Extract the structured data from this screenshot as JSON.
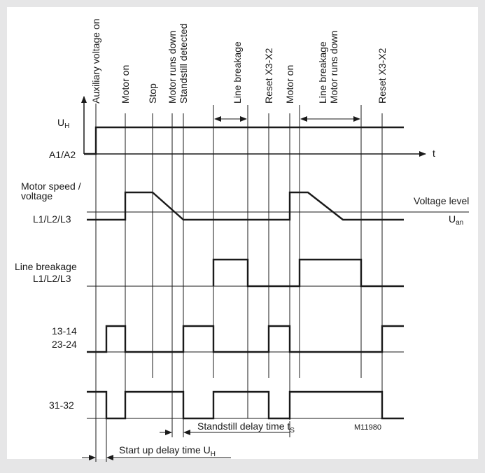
{
  "events": [
    "Auxiliary voltage on",
    "Motor on",
    "Stop",
    "Motor runs down",
    "Standstill detected",
    "Line breakage",
    "Reset X3-X2",
    "Motor on",
    "Line breakage",
    "Motor runs down",
    "Reset X3-X2"
  ],
  "rows": {
    "uh_main": "U",
    "uh_sub": "H",
    "a1a2": "A1/A2",
    "motor_speed_1": "Motor speed /",
    "motor_speed_2": "voltage",
    "l1l2l3_a": "L1/L2/L3",
    "line_breakage": "Line breakage",
    "l1l2l3_b": "L1/L2/L3",
    "c1314": "13-14",
    "c2324": "23-24",
    "c3132": "31-32"
  },
  "axis_label": "t",
  "voltage_level_1": "Voltage level",
  "voltage_level_2_main": "U",
  "voltage_level_2_sub": "an",
  "standstill_delay_main": "Standstill delay time t",
  "standstill_delay_sub": "S",
  "startup_delay_main": "Start up delay time U",
  "startup_delay_sub": "H",
  "figure_code": "M11980"
}
